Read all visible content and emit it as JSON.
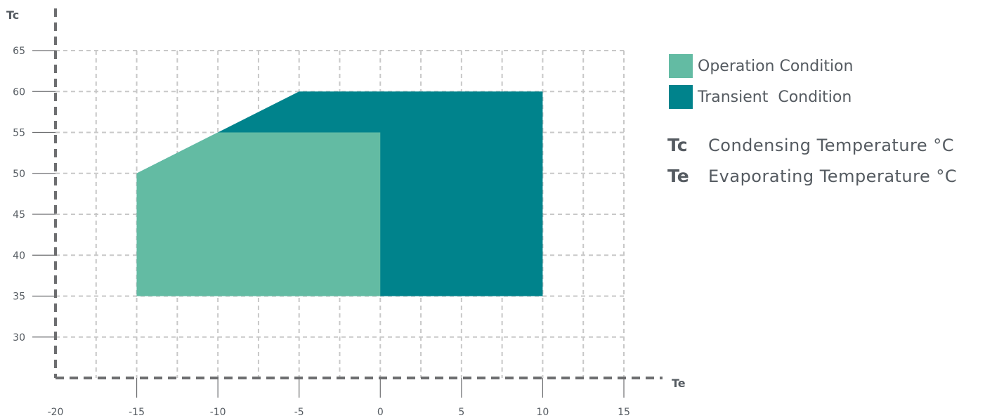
{
  "chart_data": {
    "type": "area",
    "title": "",
    "xlabel": "Te",
    "ylabel": "Tc",
    "xlim": [
      -20,
      15
    ],
    "ylim": [
      25,
      65
    ],
    "xticks": [
      -20,
      -15,
      -10,
      -5,
      0,
      5,
      10,
      15
    ],
    "yticks": [
      30,
      35,
      40,
      45,
      50,
      55,
      60,
      65
    ],
    "grid": true,
    "legend_position": "right",
    "series": [
      {
        "name": "Transient  Condition",
        "color": "#00838c",
        "polygon": [
          [
            -15,
            35
          ],
          [
            -15,
            50
          ],
          [
            -5,
            60
          ],
          [
            10,
            60
          ],
          [
            10,
            35
          ]
        ]
      },
      {
        "name": "Operation Condition",
        "color": "#63bba3",
        "polygon": [
          [
            -15,
            35
          ],
          [
            -15,
            50
          ],
          [
            -10,
            55
          ],
          [
            0,
            55
          ],
          [
            0,
            35
          ]
        ]
      }
    ],
    "definitions": [
      {
        "symbol": "Tc",
        "text": "Condensing Temperature °C"
      },
      {
        "symbol": "Te",
        "text": "Evaporating Temperature °C"
      }
    ],
    "colors": {
      "axis": "#6d6e70",
      "grid": "#c8c8c8",
      "text": "#555b61"
    }
  }
}
